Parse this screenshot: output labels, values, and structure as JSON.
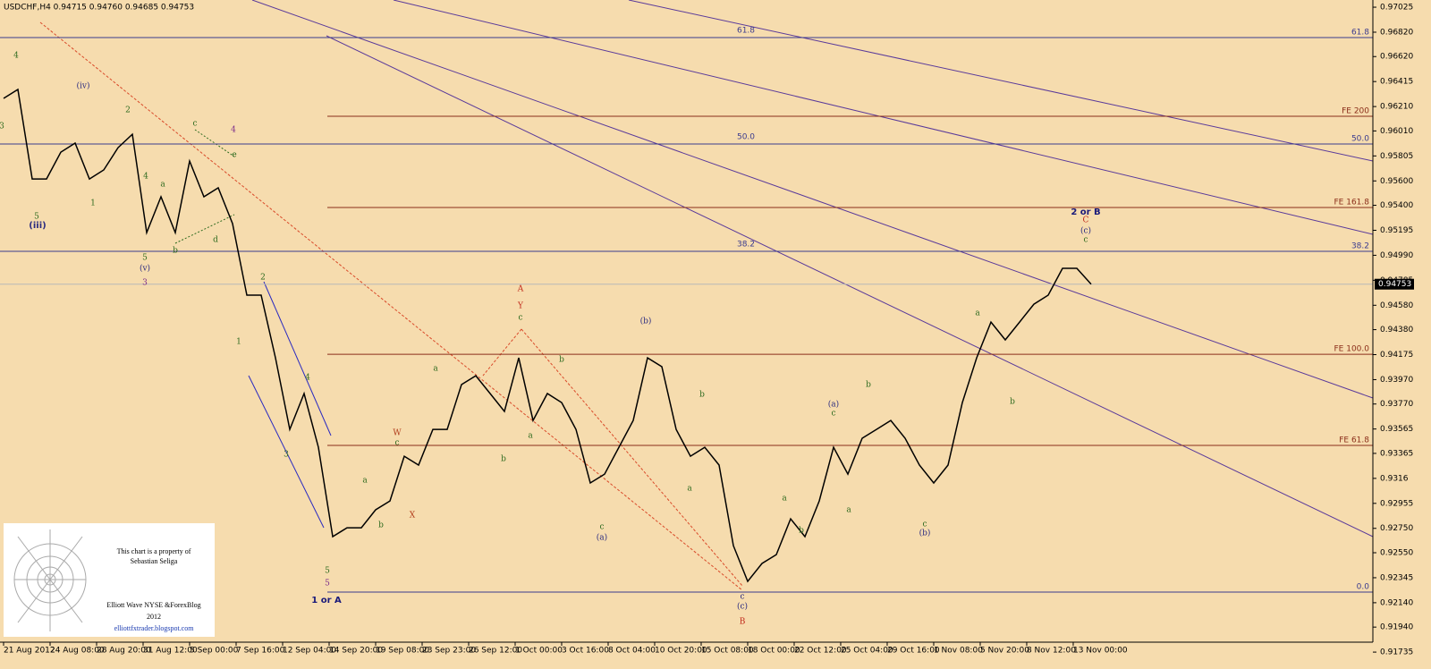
{
  "chart_data": {
    "type": "line",
    "title": "USDCHF,H4  0.94715 0.94760 0.94685 0.94753",
    "color": "#000000",
    "values": [
      0.96277,
      0.9635,
      0.95616,
      0.95616,
      0.95836,
      0.9591,
      0.95616,
      0.9569,
      0.95873,
      0.95983,
      0.95176,
      0.9547,
      0.95176,
      0.95763,
      0.9547,
      0.95543,
      0.9525,
      0.94663,
      0.94663,
      0.94149,
      0.93562,
      0.93856,
      0.93415,
      0.92682,
      0.92755,
      0.92755,
      0.92902,
      0.92975,
      0.93342,
      0.93269,
      0.93562,
      0.93562,
      0.93929,
      0.94002,
      0.93856,
      0.93709,
      0.94149,
      0.93635,
      0.93856,
      0.93782,
      0.93562,
      0.93122,
      0.93195,
      0.93415,
      0.93635,
      0.94149,
      0.94076,
      0.93562,
      0.93342,
      0.93415,
      0.93269,
      0.92608,
      0.92315,
      0.92462,
      0.92535,
      0.92828,
      0.92682,
      0.92975,
      0.93415,
      0.93195,
      0.93489,
      0.93562,
      0.93635,
      0.93489,
      0.93269,
      0.93122,
      0.93269,
      0.93782,
      0.94149,
      0.94442,
      0.94296,
      0.94442,
      0.94589,
      0.94663,
      0.94883,
      0.94883,
      0.94753
    ],
    "last_price": 0.94753,
    "xlim": [
      -0.25,
      95.69
    ],
    "xticks": [
      {
        "value": 0,
        "label": "21 Aug 2012"
      },
      {
        "value": 3.25,
        "label": "24 Aug 08:00"
      },
      {
        "value": 6.5,
        "label": "28 Aug 20:00"
      },
      {
        "value": 9.75,
        "label": "31 Aug 12:00"
      },
      {
        "value": 13,
        "label": "5 Sep 00:00"
      },
      {
        "value": 16.25,
        "label": "7 Sep 16:00"
      },
      {
        "value": 19.5,
        "label": "12 Sep 04:00"
      },
      {
        "value": 22.75,
        "label": "14 Sep 20:00"
      },
      {
        "value": 26,
        "label": "19 Sep 08:00"
      },
      {
        "value": 29.25,
        "label": "23 Sep 23:00"
      },
      {
        "value": 32.5,
        "label": "26 Sep 12:00"
      },
      {
        "value": 35.75,
        "label": "1 Oct 00:00"
      },
      {
        "value": 39,
        "label": "3 Oct 16:00"
      },
      {
        "value": 42.25,
        "label": "8 Oct 04:00"
      },
      {
        "value": 45.5,
        "label": "10 Oct 20:00"
      },
      {
        "value": 48.75,
        "label": "15 Oct 08:00"
      },
      {
        "value": 52,
        "label": "18 Oct 00:00"
      },
      {
        "value": 55.25,
        "label": "22 Oct 12:00"
      },
      {
        "value": 58.5,
        "label": "25 Oct 04:00"
      },
      {
        "value": 61.75,
        "label": "29 Oct 16:00"
      },
      {
        "value": 65,
        "label": "1 Nov 08:00"
      },
      {
        "value": 68.25,
        "label": "5 Nov 20:00"
      },
      {
        "value": 71.5,
        "label": "8 Nov 12:00"
      },
      {
        "value": 74.75,
        "label": "13 Nov 00:00"
      }
    ],
    "ylim": [
      0.91655,
      0.97084
    ],
    "yticks": [
      0.97025,
      {
        "value": 0.9682,
        "label": "0.96820"
      },
      {
        "value": 0.9662,
        "label": "0.96620"
      },
      0.96415,
      {
        "value": 0.9621,
        "label": "0.96210"
      },
      {
        "value": 0.9601,
        "label": "0.96010"
      },
      0.95805,
      {
        "value": 0.956,
        "label": "0.95600"
      },
      {
        "value": 0.954,
        "label": "0.95400"
      },
      0.95195,
      {
        "value": 0.9499,
        "label": "0.94990"
      },
      0.94785,
      {
        "value": 0.9458,
        "label": "0.94580"
      },
      {
        "value": 0.9438,
        "label": "0.94380"
      },
      0.94175,
      {
        "value": 0.9397,
        "label": "0.93970"
      },
      {
        "value": 0.9377,
        "label": "0.93770"
      },
      0.93565,
      0.93365,
      0.9316,
      0.92955,
      {
        "value": 0.9275,
        "label": "0.92750"
      },
      {
        "value": 0.9255,
        "label": "0.92550"
      },
      0.92345,
      {
        "value": 0.9214,
        "label": "0.92140"
      },
      {
        "value": 0.9194,
        "label": "0.91940"
      },
      0.91735
    ],
    "levels": [
      {
        "label": "61.8",
        "value": 0.96776,
        "color": "#3b3b8f",
        "mid": true
      },
      {
        "label": "FE 200",
        "value": 0.9613,
        "color": "#8b2e1a",
        "mid": false
      },
      {
        "label": "50.0",
        "value": 0.95903,
        "color": "#3b3b8f",
        "mid": true
      },
      {
        "label": "FE 161.8",
        "value": 0.95382,
        "color": "#8b2e1a",
        "mid": false
      },
      {
        "label": "38.2",
        "value": 0.95022,
        "color": "#3b3b8f",
        "mid": true
      },
      {
        "label": "FE 100.0",
        "value": 0.94178,
        "color": "#8b2e1a",
        "mid": false
      },
      {
        "label": "FE 61.8",
        "value": 0.9343,
        "color": "#8b2e1a",
        "mid": false
      },
      {
        "label": "0.0",
        "value": 0.92227,
        "color": "#3b3b8f",
        "mid": false
      }
    ],
    "annotations": [
      {
        "text": "4",
        "color": "#2d6a1e"
      },
      {
        "text": "(iv)",
        "color": "#2b2b80"
      },
      {
        "text": "2",
        "color": "#2d6a1e"
      },
      {
        "text": "c",
        "color": "#2d6a1e"
      },
      {
        "text": "4",
        "color": "#7a2a8a"
      },
      {
        "text": "3",
        "color": "#2d6a1e"
      },
      {
        "text": "4",
        "color": "#2d6a1e"
      },
      {
        "text": "a",
        "color": "#2d6a1e"
      },
      {
        "text": "e",
        "color": "#2d6a1e"
      },
      {
        "text": "5",
        "color": "#2d6a1e"
      },
      {
        "text": "(iii)",
        "color": "#2b2b80"
      },
      {
        "text": "1",
        "color": "#2d6a1e"
      },
      {
        "text": "d",
        "color": "#2d6a1e"
      },
      {
        "text": "b",
        "color": "#2d6a1e"
      },
      {
        "text": "5",
        "color": "#2d6a1e"
      },
      {
        "text": "(v)",
        "color": "#2b2b80"
      },
      {
        "text": "3",
        "color": "#7a2a8a"
      },
      {
        "text": "2",
        "color": "#2d6a1e"
      },
      {
        "text": "1",
        "color": "#2d6a1e"
      },
      {
        "text": "4",
        "color": "#2d6a1e"
      },
      {
        "text": "3",
        "color": "#2d6a1e"
      },
      {
        "text": "5",
        "color": "#2d6a1e"
      },
      {
        "text": "5",
        "color": "#7a2a8a"
      },
      {
        "text": "1 or A",
        "color": "#1a1a7a"
      },
      {
        "text": "W",
        "color": "#b03a1a"
      },
      {
        "text": "c",
        "color": "#2d6a1e"
      },
      {
        "text": "X",
        "color": "#b03a1a"
      },
      {
        "text": "a",
        "color": "#2d6a1e"
      },
      {
        "text": "b",
        "color": "#2d6a1e"
      },
      {
        "text": "a",
        "color": "#2d6a1e"
      },
      {
        "text": "A",
        "color": "#c0281a"
      },
      {
        "text": "Y",
        "color": "#c0281a"
      },
      {
        "text": "c",
        "color": "#2d6a1e"
      },
      {
        "text": "b",
        "color": "#2d6a1e"
      },
      {
        "text": "a",
        "color": "#2d6a1e"
      },
      {
        "text": "b",
        "color": "#2d6a1e"
      },
      {
        "text": "(b)",
        "color": "#2b2b80"
      },
      {
        "text": "b",
        "color": "#2d6a1e"
      },
      {
        "text": "a",
        "color": "#2d6a1e"
      },
      {
        "text": "c",
        "color": "#2d6a1e"
      },
      {
        "text": "(a)",
        "color": "#2b2b80"
      },
      {
        "text": "c",
        "color": "#2b2b80"
      },
      {
        "text": "(c)",
        "color": "#2b2b80"
      },
      {
        "text": "B",
        "color": "#c0281a"
      },
      {
        "text": "a",
        "color": "#2d6a1e"
      },
      {
        "text": "b",
        "color": "#2d6a1e"
      },
      {
        "text": "(a)",
        "color": "#2b2b80"
      },
      {
        "text": "c",
        "color": "#2d6a1e"
      },
      {
        "text": "b",
        "color": "#2d6a1e"
      },
      {
        "text": "a",
        "color": "#2d6a1e"
      },
      {
        "text": "c",
        "color": "#2d6a1e"
      },
      {
        "text": "(b)",
        "color": "#2b2b80"
      },
      {
        "text": "a",
        "color": "#2d6a1e"
      },
      {
        "text": "b",
        "color": "#2d6a1e"
      },
      {
        "text": "2 or B",
        "color": "#1a1a7a"
      },
      {
        "text": "C",
        "color": "#c0281a"
      },
      {
        "text": "(c)",
        "color": "#2b2b80"
      },
      {
        "text": "c",
        "color": "#2d6a1e"
      }
    ],
    "logo": {
      "owner": "This chart is a property of",
      "name": "Sebastian Seliga",
      "blog": "Elliott Wave NYSE &ForexBlog",
      "year": "2012",
      "url": "elliottfxtrader.blogspot.com"
    }
  }
}
